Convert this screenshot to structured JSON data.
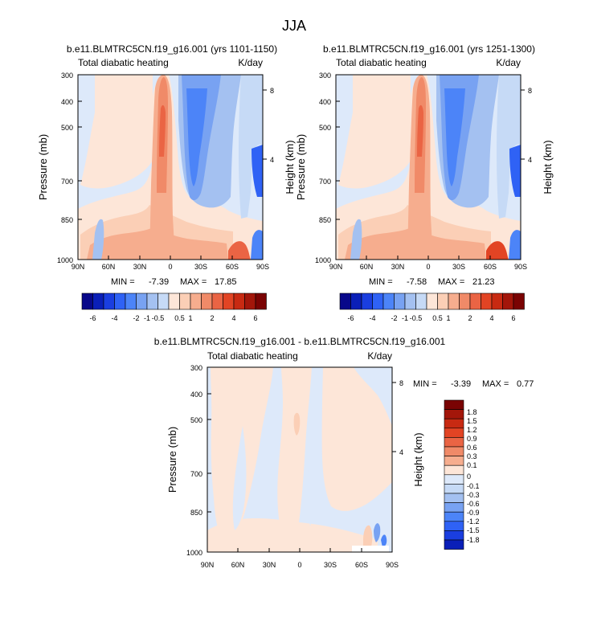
{
  "suptitle": "JJA",
  "colors": {
    "blue9": "#08088a",
    "blue8": "#0a1fb8",
    "blue7": "#1a3ee0",
    "blue6": "#2f62f5",
    "blue5": "#4c84f8",
    "blue4": "#78a2f2",
    "blue3": "#a4c1f1",
    "blue2": "#c6daf6",
    "blue1": "#dde9fa",
    "red1": "#fde6d8",
    "red2": "#fbcfb6",
    "red3": "#f6ad8e",
    "red4": "#f08a68",
    "red5": "#ea6444",
    "red6": "#e24424",
    "red7": "#c82a12",
    "red8": "#a3160a",
    "red9": "#7a0303"
  },
  "chart_data": [
    {
      "type": "heatmap",
      "title": "b.e11.BLMTRC5CN.f19_g16.001 (yrs 1101-1150)",
      "left_label": "Total diabatic heating",
      "right_label": "K/day",
      "ylabel": "Pressure (mb)",
      "y2label": "Height (km)",
      "xticks": [
        "90N",
        "60N",
        "30N",
        "0",
        "30S",
        "60S",
        "90S"
      ],
      "yticks": [
        "300",
        "400",
        "500",
        "700",
        "850",
        "1000"
      ],
      "y2ticks": [
        "8",
        "4"
      ],
      "min_label": "MIN =",
      "min_value": "-7.39",
      "max_label": "MAX =",
      "max_value": "17.85",
      "colorbar_labels": [
        "-6",
        "-4",
        "-2",
        "-1",
        "-0.5",
        "0.5",
        "1",
        "2",
        "4",
        "6"
      ]
    },
    {
      "type": "heatmap",
      "title": "b.e11.BLMTRC5CN.f19_g16.001 (yrs 1251-1300)",
      "left_label": "Total diabatic heating",
      "right_label": "K/day",
      "ylabel": "Pressure (mb)",
      "y2label": "Height (km)",
      "xticks": [
        "90N",
        "60N",
        "30N",
        "0",
        "30S",
        "60S",
        "90S"
      ],
      "yticks": [
        "300",
        "400",
        "500",
        "700",
        "850",
        "1000"
      ],
      "y2ticks": [
        "8",
        "4"
      ],
      "min_label": "MIN =",
      "min_value": "-7.58",
      "max_label": "MAX =",
      "max_value": "21.23",
      "colorbar_labels": [
        "-6",
        "-4",
        "-2",
        "-1",
        "-0.5",
        "0.5",
        "1",
        "2",
        "4",
        "6"
      ]
    },
    {
      "type": "heatmap",
      "title": "b.e11.BLMTRC5CN.f19_g16.001 - b.e11.BLMTRC5CN.f19_g16.001",
      "left_label": "Total diabatic heating",
      "right_label": "K/day",
      "ylabel": "Pressure (mb)",
      "y2label": "Height (km)",
      "xticks": [
        "90N",
        "60N",
        "30N",
        "0",
        "30S",
        "60S",
        "90S"
      ],
      "yticks": [
        "300",
        "400",
        "500",
        "700",
        "850",
        "1000"
      ],
      "y2ticks": [
        "8",
        "4"
      ],
      "min_label": "MIN =",
      "min_value": "-3.39",
      "max_label": "MAX =",
      "max_value": "0.77",
      "colorbar_labels": [
        "1.8",
        "1.5",
        "1.2",
        "0.9",
        "0.6",
        "0.3",
        "0.1",
        "0",
        "-0.1",
        "-0.3",
        "-0.6",
        "-0.9",
        "-1.2",
        "-1.5",
        "-1.8"
      ]
    }
  ]
}
